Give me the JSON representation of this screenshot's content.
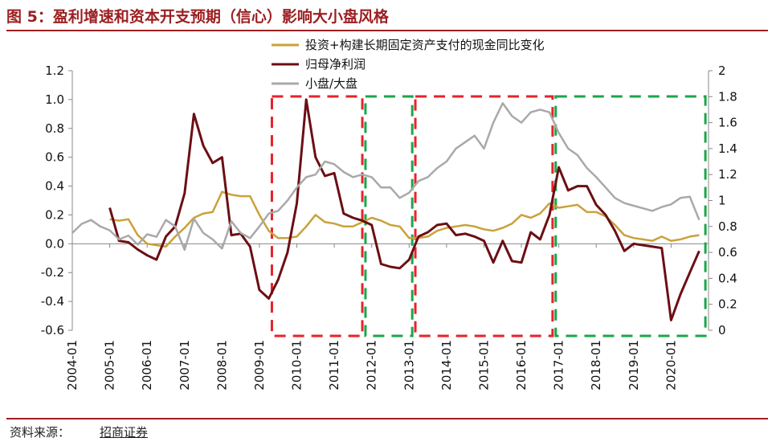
{
  "figure": {
    "title": "图 5：盈利增速和资本开支预期（信心）影响大小盘风格",
    "source_label": "资料来源：",
    "source_name": "招商证券"
  },
  "colors": {
    "brand": "#9c1f22",
    "capex": "#c9a23a",
    "profit": "#6b0f14",
    "ratio": "#a9a9a9",
    "red_box": "#e8222a",
    "green_box": "#1aa64a"
  },
  "chart_data": {
    "type": "line",
    "x_ticks": [
      "2004-01",
      "2005-01",
      "2006-01",
      "2007-01",
      "2008-01",
      "2009-01",
      "2010-01",
      "2011-01",
      "2012-01",
      "2013-01",
      "2014-01",
      "2015-01",
      "2016-01",
      "2017-01",
      "2018-01",
      "2019-01",
      "2020-01"
    ],
    "y_left": {
      "min": -0.6,
      "max": 1.2,
      "ticks": [
        "1.2",
        "1.0",
        "0.8",
        "0.6",
        "0.4",
        "0.2",
        "0.0",
        "-0.2",
        "-0.4",
        "-0.6"
      ]
    },
    "y_right": {
      "min": 0,
      "max": 2,
      "ticks": [
        "2",
        "1.8",
        "1.6",
        "1.4",
        "1.2",
        "1",
        "0.8",
        "0.6",
        "0.4",
        "0.2",
        "0"
      ]
    },
    "series": [
      {
        "name": "投资+构建长期固定资产支付的现金同比变化",
        "axis": "left",
        "points": [
          [
            "2005-01",
            0.17
          ],
          [
            "2005-04",
            0.16
          ],
          [
            "2005-07",
            0.17
          ],
          [
            "2005-10",
            0.06
          ],
          [
            "2006-01",
            0.0
          ],
          [
            "2006-04",
            -0.01
          ],
          [
            "2006-07",
            -0.02
          ],
          [
            "2006-10",
            0.05
          ],
          [
            "2007-01",
            0.11
          ],
          [
            "2007-04",
            0.18
          ],
          [
            "2007-07",
            0.21
          ],
          [
            "2007-10",
            0.22
          ],
          [
            "2008-01",
            0.36
          ],
          [
            "2008-04",
            0.34
          ],
          [
            "2008-07",
            0.33
          ],
          [
            "2008-10",
            0.33
          ],
          [
            "2009-01",
            0.2
          ],
          [
            "2009-04",
            0.09
          ],
          [
            "2009-07",
            0.04
          ],
          [
            "2009-10",
            0.04
          ],
          [
            "2010-01",
            0.05
          ],
          [
            "2010-04",
            0.12
          ],
          [
            "2010-07",
            0.2
          ],
          [
            "2010-10",
            0.15
          ],
          [
            "2011-01",
            0.14
          ],
          [
            "2011-04",
            0.12
          ],
          [
            "2011-07",
            0.12
          ],
          [
            "2011-10",
            0.15
          ],
          [
            "2012-01",
            0.18
          ],
          [
            "2012-04",
            0.16
          ],
          [
            "2012-07",
            0.13
          ],
          [
            "2012-10",
            0.12
          ],
          [
            "2013-01",
            0.04
          ],
          [
            "2013-04",
            0.04
          ],
          [
            "2013-07",
            0.05
          ],
          [
            "2013-10",
            0.09
          ],
          [
            "2014-01",
            0.11
          ],
          [
            "2014-04",
            0.12
          ],
          [
            "2014-07",
            0.13
          ],
          [
            "2014-10",
            0.12
          ],
          [
            "2015-01",
            0.1
          ],
          [
            "2015-04",
            0.09
          ],
          [
            "2015-07",
            0.11
          ],
          [
            "2015-10",
            0.14
          ],
          [
            "2016-01",
            0.2
          ],
          [
            "2016-04",
            0.18
          ],
          [
            "2016-07",
            0.21
          ],
          [
            "2016-10",
            0.28
          ],
          [
            "2017-01",
            0.25
          ],
          [
            "2017-04",
            0.26
          ],
          [
            "2017-07",
            0.27
          ],
          [
            "2017-10",
            0.22
          ],
          [
            "2018-01",
            0.22
          ],
          [
            "2018-04",
            0.19
          ],
          [
            "2018-07",
            0.13
          ],
          [
            "2018-10",
            0.06
          ],
          [
            "2019-01",
            0.04
          ],
          [
            "2019-04",
            0.03
          ],
          [
            "2019-07",
            0.02
          ],
          [
            "2019-10",
            0.05
          ],
          [
            "2020-01",
            0.02
          ],
          [
            "2020-04",
            0.03
          ],
          [
            "2020-07",
            0.05
          ],
          [
            "2020-10",
            0.06
          ]
        ]
      },
      {
        "name": "归母净利润",
        "axis": "left",
        "points": [
          [
            "2005-01",
            0.25
          ],
          [
            "2005-04",
            0.02
          ],
          [
            "2005-07",
            0.01
          ],
          [
            "2005-10",
            -0.04
          ],
          [
            "2006-01",
            -0.08
          ],
          [
            "2006-04",
            -0.11
          ],
          [
            "2006-07",
            0.05
          ],
          [
            "2006-10",
            0.12
          ],
          [
            "2007-01",
            0.35
          ],
          [
            "2007-04",
            0.9
          ],
          [
            "2007-07",
            0.68
          ],
          [
            "2007-10",
            0.56
          ],
          [
            "2008-01",
            0.6
          ],
          [
            "2008-04",
            0.06
          ],
          [
            "2008-07",
            0.07
          ],
          [
            "2008-10",
            -0.02
          ],
          [
            "2009-01",
            -0.32
          ],
          [
            "2009-04",
            -0.38
          ],
          [
            "2009-07",
            -0.25
          ],
          [
            "2009-10",
            -0.06
          ],
          [
            "2010-01",
            0.28
          ],
          [
            "2010-04",
            1.0
          ],
          [
            "2010-07",
            0.6
          ],
          [
            "2010-10",
            0.47
          ],
          [
            "2011-01",
            0.49
          ],
          [
            "2011-04",
            0.21
          ],
          [
            "2011-07",
            0.18
          ],
          [
            "2011-10",
            0.16
          ],
          [
            "2012-01",
            0.13
          ],
          [
            "2012-04",
            -0.14
          ],
          [
            "2012-07",
            -0.16
          ],
          [
            "2012-10",
            -0.17
          ],
          [
            "2013-01",
            -0.11
          ],
          [
            "2013-04",
            0.05
          ],
          [
            "2013-07",
            0.08
          ],
          [
            "2013-10",
            0.13
          ],
          [
            "2014-01",
            0.14
          ],
          [
            "2014-04",
            0.06
          ],
          [
            "2014-07",
            0.07
          ],
          [
            "2014-10",
            0.05
          ],
          [
            "2015-01",
            0.02
          ],
          [
            "2015-04",
            -0.13
          ],
          [
            "2015-07",
            0.02
          ],
          [
            "2015-10",
            -0.12
          ],
          [
            "2016-01",
            -0.13
          ],
          [
            "2016-04",
            0.08
          ],
          [
            "2016-07",
            0.03
          ],
          [
            "2016-10",
            0.2
          ],
          [
            "2017-01",
            0.53
          ],
          [
            "2017-04",
            0.37
          ],
          [
            "2017-07",
            0.4
          ],
          [
            "2017-10",
            0.4
          ],
          [
            "2018-01",
            0.27
          ],
          [
            "2018-04",
            0.2
          ],
          [
            "2018-07",
            0.09
          ],
          [
            "2018-10",
            -0.05
          ],
          [
            "2019-01",
            0.0
          ],
          [
            "2019-04",
            -0.01
          ],
          [
            "2019-07",
            -0.02
          ],
          [
            "2019-10",
            -0.03
          ],
          [
            "2020-01",
            -0.53
          ],
          [
            "2020-04",
            -0.35
          ],
          [
            "2020-07",
            -0.2
          ],
          [
            "2020-10",
            -0.05
          ]
        ]
      },
      {
        "name": "小盘/大盘",
        "axis": "right",
        "points": [
          [
            "2004-01",
            0.75
          ],
          [
            "2004-04",
            0.82
          ],
          [
            "2004-07",
            0.85
          ],
          [
            "2004-10",
            0.8
          ],
          [
            "2005-01",
            0.77
          ],
          [
            "2005-04",
            0.7
          ],
          [
            "2005-07",
            0.73
          ],
          [
            "2005-10",
            0.66
          ],
          [
            "2006-01",
            0.74
          ],
          [
            "2006-04",
            0.72
          ],
          [
            "2006-07",
            0.85
          ],
          [
            "2006-10",
            0.8
          ],
          [
            "2007-01",
            0.62
          ],
          [
            "2007-04",
            0.86
          ],
          [
            "2007-07",
            0.75
          ],
          [
            "2007-10",
            0.7
          ],
          [
            "2008-01",
            0.63
          ],
          [
            "2008-04",
            0.84
          ],
          [
            "2008-07",
            0.75
          ],
          [
            "2008-10",
            0.71
          ],
          [
            "2009-01",
            0.8
          ],
          [
            "2009-04",
            0.9
          ],
          [
            "2009-07",
            0.92
          ],
          [
            "2009-10",
            1.0
          ],
          [
            "2010-01",
            1.1
          ],
          [
            "2010-04",
            1.18
          ],
          [
            "2010-07",
            1.2
          ],
          [
            "2010-10",
            1.3
          ],
          [
            "2011-01",
            1.28
          ],
          [
            "2011-04",
            1.22
          ],
          [
            "2011-07",
            1.18
          ],
          [
            "2011-10",
            1.2
          ],
          [
            "2012-01",
            1.18
          ],
          [
            "2012-04",
            1.1
          ],
          [
            "2012-07",
            1.1
          ],
          [
            "2012-10",
            1.02
          ],
          [
            "2013-01",
            1.06
          ],
          [
            "2013-04",
            1.15
          ],
          [
            "2013-07",
            1.18
          ],
          [
            "2013-10",
            1.25
          ],
          [
            "2014-01",
            1.3
          ],
          [
            "2014-04",
            1.4
          ],
          [
            "2014-07",
            1.45
          ],
          [
            "2014-10",
            1.5
          ],
          [
            "2015-01",
            1.4
          ],
          [
            "2015-04",
            1.6
          ],
          [
            "2015-07",
            1.75
          ],
          [
            "2015-10",
            1.65
          ],
          [
            "2016-01",
            1.6
          ],
          [
            "2016-04",
            1.68
          ],
          [
            "2016-07",
            1.7
          ],
          [
            "2016-10",
            1.68
          ],
          [
            "2017-01",
            1.52
          ],
          [
            "2017-04",
            1.4
          ],
          [
            "2017-07",
            1.35
          ],
          [
            "2017-10",
            1.25
          ],
          [
            "2018-01",
            1.18
          ],
          [
            "2018-04",
            1.1
          ],
          [
            "2018-07",
            1.02
          ],
          [
            "2018-10",
            0.98
          ],
          [
            "2019-01",
            0.96
          ],
          [
            "2019-04",
            0.94
          ],
          [
            "2019-07",
            0.92
          ],
          [
            "2019-10",
            0.95
          ],
          [
            "2020-01",
            0.97
          ],
          [
            "2020-04",
            1.02
          ],
          [
            "2020-07",
            1.03
          ],
          [
            "2020-10",
            0.85
          ]
        ]
      }
    ],
    "legend_position": "top-center",
    "grid": false,
    "annotation_boxes": [
      {
        "color": "red",
        "from": "2009-05",
        "to": "2011-10"
      },
      {
        "color": "green",
        "from": "2011-11",
        "to": "2013-02"
      },
      {
        "color": "red",
        "from": "2013-03",
        "to": "2016-11"
      },
      {
        "color": "green",
        "from": "2016-12",
        "to": "2020-12"
      }
    ]
  }
}
